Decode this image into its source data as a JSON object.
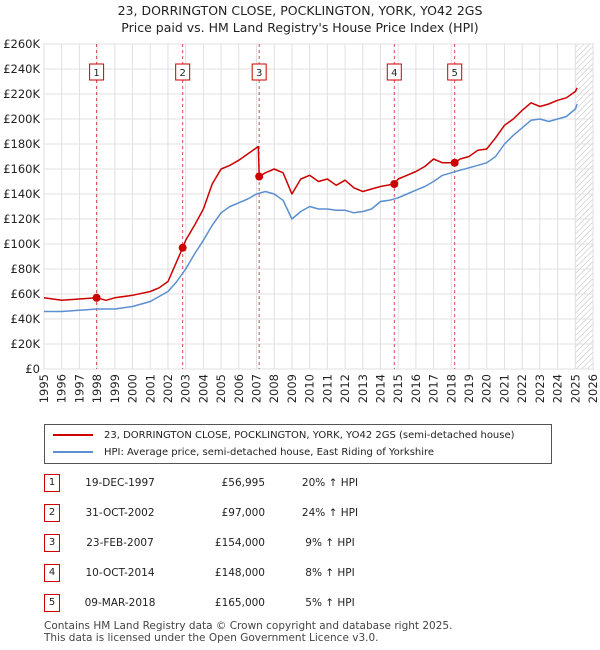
{
  "title_line1": "23, DORRINGTON CLOSE, POCKLINGTON, YORK, YO42 2GS",
  "title_line2": "Price paid vs. HM Land Registry's House Price Index (HPI)",
  "legend": [
    {
      "label": "23, DORRINGTON CLOSE, POCKLINGTON, YORK, YO42 2GS (semi-detached house)",
      "color": "#cc0000"
    },
    {
      "label": "HPI: Average price, semi-detached house, East Riding of Yorkshire",
      "color": "#5b8fd0"
    }
  ],
  "sales": [
    {
      "num": "1",
      "date": "19-DEC-1997",
      "price": "£56,995",
      "hpi": "20% ↑ HPI"
    },
    {
      "num": "2",
      "date": "31-OCT-2002",
      "price": "£97,000",
      "hpi": "24% ↑ HPI"
    },
    {
      "num": "3",
      "date": "23-FEB-2007",
      "price": "£154,000",
      "hpi": "9% ↑ HPI"
    },
    {
      "num": "4",
      "date": "10-OCT-2014",
      "price": "£148,000",
      "hpi": "8% ↑ HPI"
    },
    {
      "num": "5",
      "date": "09-MAR-2018",
      "price": "£165,000",
      "hpi": "5% ↑ HPI"
    }
  ],
  "footer_line1": "Contains HM Land Registry data © Crown copyright and database right 2025.",
  "footer_line2": "This data is licensed under the Open Government Licence v3.0.",
  "chart_data": {
    "type": "line",
    "title": "23, DORRINGTON CLOSE, POCKLINGTON, YORK, YO42 2GS",
    "subtitle": "Price paid vs. HM Land Registry's House Price Index (HPI)",
    "xlim": [
      1995,
      2026
    ],
    "ylim": [
      0,
      260000
    ],
    "x_ticks": [
      1995,
      1996,
      1997,
      1998,
      1999,
      2000,
      2001,
      2002,
      2003,
      2004,
      2005,
      2006,
      2007,
      2008,
      2009,
      2010,
      2011,
      2012,
      2013,
      2014,
      2015,
      2016,
      2017,
      2018,
      2019,
      2020,
      2021,
      2022,
      2023,
      2024,
      2025,
      2026
    ],
    "y_ticks": [
      0,
      20000,
      40000,
      60000,
      80000,
      100000,
      120000,
      140000,
      160000,
      180000,
      200000,
      220000,
      240000,
      260000
    ],
    "y_tick_labels": [
      "£0",
      "£20K",
      "£40K",
      "£60K",
      "£80K",
      "£100K",
      "£120K",
      "£140K",
      "£160K",
      "£180K",
      "£200K",
      "£220K",
      "£240K",
      "£260K"
    ],
    "grid": true,
    "legend_position": "below",
    "shaded_future_from": 2025.0,
    "sale_markers": [
      {
        "label": "1",
        "x": 1997.97,
        "y": 56995
      },
      {
        "label": "2",
        "x": 2002.83,
        "y": 97000
      },
      {
        "label": "3",
        "x": 2007.15,
        "y": 154000
      },
      {
        "label": "4",
        "x": 2014.78,
        "y": 148000
      },
      {
        "label": "5",
        "x": 2018.19,
        "y": 165000
      }
    ],
    "series": [
      {
        "name": "23, DORRINGTON CLOSE, POCKLINGTON, YORK, YO42 2GS (semi-detached house)",
        "color": "#cc0000",
        "x": [
          1995,
          1996,
          1997,
          1997.97,
          1998.5,
          1999,
          2000,
          2001,
          2001.5,
          2002,
          2002.83,
          2003,
          2003.5,
          2004,
          2004.5,
          2005,
          2005.5,
          2006,
          2006.5,
          2007.1,
          2007.15,
          2007.5,
          2008,
          2008.5,
          2009,
          2009.5,
          2010,
          2010.5,
          2011,
          2011.5,
          2012,
          2012.5,
          2013,
          2013.5,
          2014,
          2014.78,
          2015,
          2015.5,
          2016,
          2016.5,
          2017,
          2017.5,
          2018.19,
          2018.5,
          2019,
          2019.5,
          2020,
          2020.5,
          2021,
          2021.5,
          2022,
          2022.5,
          2023,
          2023.5,
          2024,
          2024.5,
          2025,
          2025.1
        ],
        "y": [
          57000,
          55000,
          56000,
          56995,
          55000,
          57000,
          59000,
          62000,
          65000,
          70000,
          97000,
          103000,
          115000,
          128000,
          148000,
          160000,
          163000,
          167000,
          172000,
          178000,
          154000,
          157000,
          160000,
          157000,
          140000,
          152000,
          155000,
          150000,
          152000,
          147000,
          151000,
          145000,
          142000,
          144000,
          146000,
          148000,
          152000,
          155000,
          158000,
          162000,
          168000,
          165000,
          165000,
          168000,
          170000,
          175000,
          176000,
          185000,
          195000,
          200000,
          207000,
          213000,
          210000,
          212000,
          215000,
          217000,
          222000,
          225000
        ]
      },
      {
        "name": "HPI: Average price, semi-detached house, East Riding of Yorkshire",
        "color": "#5b8fd0",
        "x": [
          1995,
          1996,
          1997,
          1998,
          1999,
          2000,
          2001,
          2002,
          2002.5,
          2003,
          2003.5,
          2004,
          2004.5,
          2005,
          2005.5,
          2006,
          2006.5,
          2007,
          2007.5,
          2008,
          2008.5,
          2009,
          2009.5,
          2010,
          2010.5,
          2011,
          2011.5,
          2012,
          2012.5,
          2013,
          2013.5,
          2014,
          2014.5,
          2015,
          2015.5,
          2016,
          2016.5,
          2017,
          2017.5,
          2018,
          2018.5,
          2019,
          2019.5,
          2020,
          2020.5,
          2021,
          2021.5,
          2022,
          2022.5,
          2023,
          2023.5,
          2024,
          2024.5,
          2025,
          2025.1
        ],
        "y": [
          46000,
          46000,
          47000,
          48000,
          48000,
          50000,
          54000,
          62000,
          70000,
          80000,
          92000,
          103000,
          115000,
          125000,
          130000,
          133000,
          136000,
          140000,
          142000,
          140000,
          135000,
          120000,
          126000,
          130000,
          128000,
          128000,
          127000,
          127000,
          125000,
          126000,
          128000,
          134000,
          135000,
          137000,
          140000,
          143000,
          146000,
          150000,
          155000,
          157000,
          159000,
          161000,
          163000,
          165000,
          170000,
          180000,
          187000,
          193000,
          199000,
          200000,
          198000,
          200000,
          202000,
          208000,
          212000
        ]
      }
    ]
  }
}
